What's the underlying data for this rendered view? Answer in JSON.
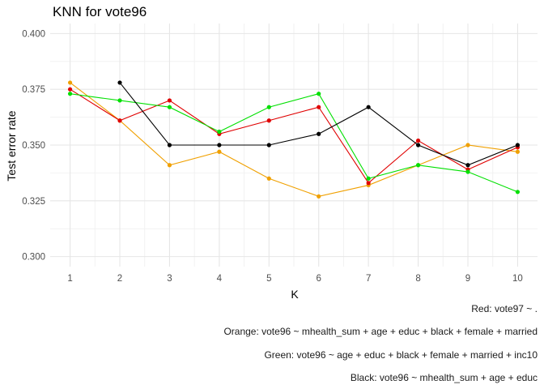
{
  "chart_data": {
    "type": "line",
    "title": "KNN for vote96",
    "xlabel": "K",
    "ylabel": "Test error rate",
    "x": [
      1,
      2,
      3,
      4,
      5,
      6,
      7,
      8,
      9,
      10
    ],
    "xlim": [
      0.6,
      10.4
    ],
    "ylim": [
      0.2955,
      0.4045
    ],
    "yticks": [
      0.3,
      0.325,
      0.35,
      0.375,
      0.4
    ],
    "ytick_labels": [
      "0.300",
      "0.325",
      "0.350",
      "0.375",
      "0.400"
    ],
    "xtick_labels": [
      "1",
      "2",
      "3",
      "4",
      "5",
      "6",
      "7",
      "8",
      "9",
      "10"
    ],
    "grid": true,
    "series": [
      {
        "color": "#f0a000",
        "x": [
          1,
          2,
          3,
          4,
          5,
          6,
          7,
          8,
          9,
          10
        ],
        "values": [
          0.378,
          0.361,
          0.341,
          0.347,
          0.335,
          0.327,
          0.332,
          0.341,
          0.35,
          0.347
        ]
      },
      {
        "color": "#e00000",
        "x": [
          1,
          2,
          3,
          4,
          5,
          6,
          7,
          8,
          9,
          10
        ],
        "values": [
          0.375,
          0.361,
          0.37,
          0.355,
          0.361,
          0.367,
          0.333,
          0.352,
          0.339,
          0.349
        ]
      },
      {
        "color": "#00e000",
        "x": [
          1,
          2,
          3,
          4,
          5,
          6,
          7,
          8,
          9,
          10
        ],
        "values": [
          0.373,
          0.37,
          0.367,
          0.356,
          0.367,
          0.373,
          0.335,
          0.341,
          0.338,
          0.329
        ]
      },
      {
        "color": "#000000",
        "x": [
          2,
          3,
          4,
          5,
          6,
          7,
          8,
          9,
          10
        ],
        "values": [
          0.378,
          0.35,
          0.35,
          0.35,
          0.355,
          0.367,
          0.35,
          0.341,
          0.35
        ]
      }
    ],
    "caption": [
      "Red: vote97 ~ .",
      "Orange: vote96 ~ mhealth_sum + age + educ + black + female + married",
      "Green: vote96 ~ age + educ + black + female + married + inc10",
      "Black: vote96 ~ mhealth_sum + age + educ"
    ]
  }
}
